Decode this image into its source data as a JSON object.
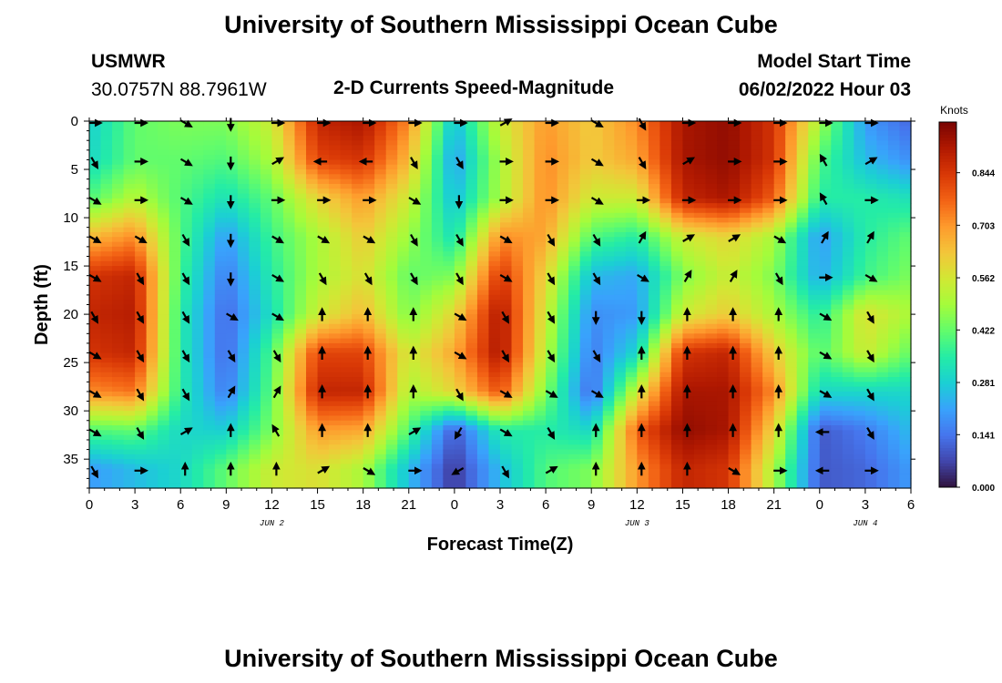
{
  "page": {
    "title": "University of Southern Mississippi Ocean Cube",
    "station": "USMWR",
    "coords": "30.0757N  88.7961W",
    "subtitle": "2-D Currents Speed-Magnitude",
    "model_start_label": "Model Start Time",
    "model_start_value": "06/02/2022 Hour 03",
    "footer_title": "University of Southern Mississippi Ocean Cube"
  },
  "colors": {
    "scale": [
      "#30123b",
      "#4145ab",
      "#4675ed",
      "#39a2fc",
      "#1bcfd4",
      "#24eca6",
      "#61fc6c",
      "#a4fc3b",
      "#d1e834",
      "#f3c63a",
      "#fe9b2d",
      "#f36315",
      "#d93806",
      "#b11901",
      "#7a0402"
    ]
  },
  "chart_data": {
    "type": "heatmap",
    "title": "2-D Currents Speed-Magnitude",
    "xlabel": "Forecast Time(Z)",
    "ylabel": "Depth (ft)",
    "xlim": [
      0,
      54
    ],
    "ylim": [
      0,
      38
    ],
    "y_inverted": true,
    "x_ticks": [
      0,
      3,
      6,
      9,
      12,
      15,
      18,
      21,
      24,
      27,
      30,
      33,
      36,
      39,
      42,
      45,
      48,
      51,
      54
    ],
    "x_tick_labels": [
      "0",
      "3",
      "6",
      "9",
      "12",
      "15",
      "18",
      "21",
      "0",
      "3",
      "6",
      "9",
      "12",
      "15",
      "18",
      "21",
      "0",
      "3",
      "6"
    ],
    "y_ticks": [
      0,
      5,
      10,
      15,
      20,
      25,
      30,
      35
    ],
    "y_tick_labels": [
      "0",
      "5",
      "10",
      "15",
      "20",
      "25",
      "30",
      "35"
    ],
    "date_labels": [
      {
        "x": 12,
        "label": "JUN 2"
      },
      {
        "x": 36,
        "label": "JUN 3"
      },
      {
        "x": 51,
        "label": "JUN 4"
      }
    ],
    "colorbar": {
      "title": "Knots",
      "min": 0.0,
      "max": 0.98,
      "ticks": [
        0.0,
        0.141,
        0.281,
        0.422,
        0.562,
        0.703,
        0.844
      ],
      "tick_labels": [
        "0.000",
        "0.141",
        "0.281",
        "0.422",
        "0.562",
        "0.703",
        "0.844"
      ]
    },
    "speed_grid": {
      "times": [
        0,
        3,
        6,
        9,
        12,
        15,
        18,
        21,
        24,
        27,
        30,
        33,
        36,
        39,
        42,
        45,
        48,
        51,
        54
      ],
      "depths": [
        0,
        4,
        8,
        12,
        16,
        20,
        24,
        28,
        32,
        36,
        38
      ],
      "values": [
        [
          0.28,
          0.42,
          0.45,
          0.45,
          0.55,
          0.88,
          0.92,
          0.72,
          0.25,
          0.55,
          0.7,
          0.62,
          0.72,
          0.92,
          0.95,
          0.85,
          0.5,
          0.2,
          0.12
        ],
        [
          0.3,
          0.42,
          0.42,
          0.4,
          0.5,
          0.82,
          0.85,
          0.65,
          0.2,
          0.5,
          0.72,
          0.62,
          0.68,
          0.92,
          0.95,
          0.85,
          0.4,
          0.25,
          0.18
        ],
        [
          0.4,
          0.52,
          0.4,
          0.32,
          0.42,
          0.6,
          0.7,
          0.55,
          0.25,
          0.5,
          0.72,
          0.55,
          0.55,
          0.88,
          0.92,
          0.78,
          0.35,
          0.35,
          0.32
        ],
        [
          0.65,
          0.72,
          0.4,
          0.2,
          0.38,
          0.5,
          0.62,
          0.48,
          0.32,
          0.72,
          0.68,
          0.4,
          0.35,
          0.55,
          0.6,
          0.5,
          0.2,
          0.35,
          0.42
        ],
        [
          0.85,
          0.88,
          0.38,
          0.15,
          0.35,
          0.5,
          0.58,
          0.42,
          0.45,
          0.85,
          0.6,
          0.25,
          0.22,
          0.45,
          0.55,
          0.45,
          0.22,
          0.38,
          0.45
        ],
        [
          0.88,
          0.9,
          0.35,
          0.12,
          0.32,
          0.55,
          0.65,
          0.45,
          0.6,
          0.92,
          0.55,
          0.18,
          0.2,
          0.55,
          0.62,
          0.5,
          0.35,
          0.58,
          0.5
        ],
        [
          0.85,
          0.88,
          0.35,
          0.12,
          0.4,
          0.82,
          0.82,
          0.55,
          0.68,
          0.92,
          0.52,
          0.15,
          0.3,
          0.85,
          0.88,
          0.62,
          0.4,
          0.55,
          0.42
        ],
        [
          0.72,
          0.75,
          0.35,
          0.15,
          0.42,
          0.88,
          0.88,
          0.5,
          0.6,
          0.8,
          0.45,
          0.12,
          0.55,
          0.92,
          0.92,
          0.72,
          0.3,
          0.3,
          0.3
        ],
        [
          0.4,
          0.42,
          0.3,
          0.28,
          0.45,
          0.7,
          0.68,
          0.4,
          0.1,
          0.35,
          0.35,
          0.3,
          0.78,
          0.95,
          0.92,
          0.6,
          0.1,
          0.15,
          0.25
        ],
        [
          0.2,
          0.25,
          0.3,
          0.42,
          0.55,
          0.58,
          0.5,
          0.25,
          0.05,
          0.25,
          0.4,
          0.45,
          0.7,
          0.88,
          0.85,
          0.5,
          0.1,
          0.12,
          0.2
        ],
        [
          0.2,
          0.25,
          0.3,
          0.42,
          0.55,
          0.58,
          0.5,
          0.25,
          0.05,
          0.25,
          0.4,
          0.45,
          0.7,
          0.88,
          0.85,
          0.5,
          0.1,
          0.12,
          0.2
        ]
      ]
    },
    "vectors": {
      "times": [
        0,
        3,
        6,
        9,
        12,
        15,
        18,
        21,
        24,
        27,
        30,
        33,
        36,
        39,
        42,
        45,
        48,
        51
      ],
      "depths": [
        0,
        4,
        8,
        12,
        16,
        20,
        24,
        28,
        32,
        36
      ],
      "directions_deg": [
        [
          90,
          90,
          120,
          180,
          90,
          90,
          90,
          90,
          90,
          60,
          90,
          120,
          150,
          90,
          90,
          90,
          90,
          90
        ],
        [
          150,
          90,
          120,
          180,
          60,
          270,
          270,
          150,
          150,
          90,
          90,
          120,
          150,
          60,
          90,
          90,
          330,
          60
        ],
        [
          120,
          90,
          120,
          180,
          90,
          90,
          90,
          120,
          180,
          90,
          90,
          120,
          90,
          90,
          90,
          90,
          330,
          90
        ],
        [
          120,
          120,
          150,
          180,
          120,
          120,
          120,
          150,
          150,
          120,
          150,
          150,
          30,
          60,
          60,
          120,
          30,
          30
        ],
        [
          120,
          150,
          150,
          180,
          120,
          150,
          150,
          150,
          150,
          120,
          150,
          150,
          120,
          30,
          30,
          150,
          90,
          120
        ],
        [
          150,
          150,
          150,
          120,
          120,
          0,
          0,
          0,
          120,
          150,
          150,
          180,
          180,
          0,
          0,
          0,
          120,
          150
        ],
        [
          120,
          150,
          150,
          150,
          150,
          0,
          0,
          0,
          120,
          150,
          150,
          150,
          0,
          0,
          0,
          0,
          120,
          150
        ],
        [
          120,
          150,
          150,
          30,
          30,
          0,
          0,
          0,
          150,
          120,
          120,
          120,
          0,
          0,
          0,
          0,
          120,
          150
        ],
        [
          120,
          150,
          60,
          0,
          330,
          0,
          0,
          60,
          210,
          120,
          150,
          0,
          0,
          0,
          0,
          0,
          270,
          150
        ],
        [
          150,
          90,
          0,
          0,
          0,
          60,
          120,
          90,
          240,
          150,
          60,
          0,
          0,
          0,
          120,
          90,
          270,
          90
        ]
      ]
    }
  }
}
